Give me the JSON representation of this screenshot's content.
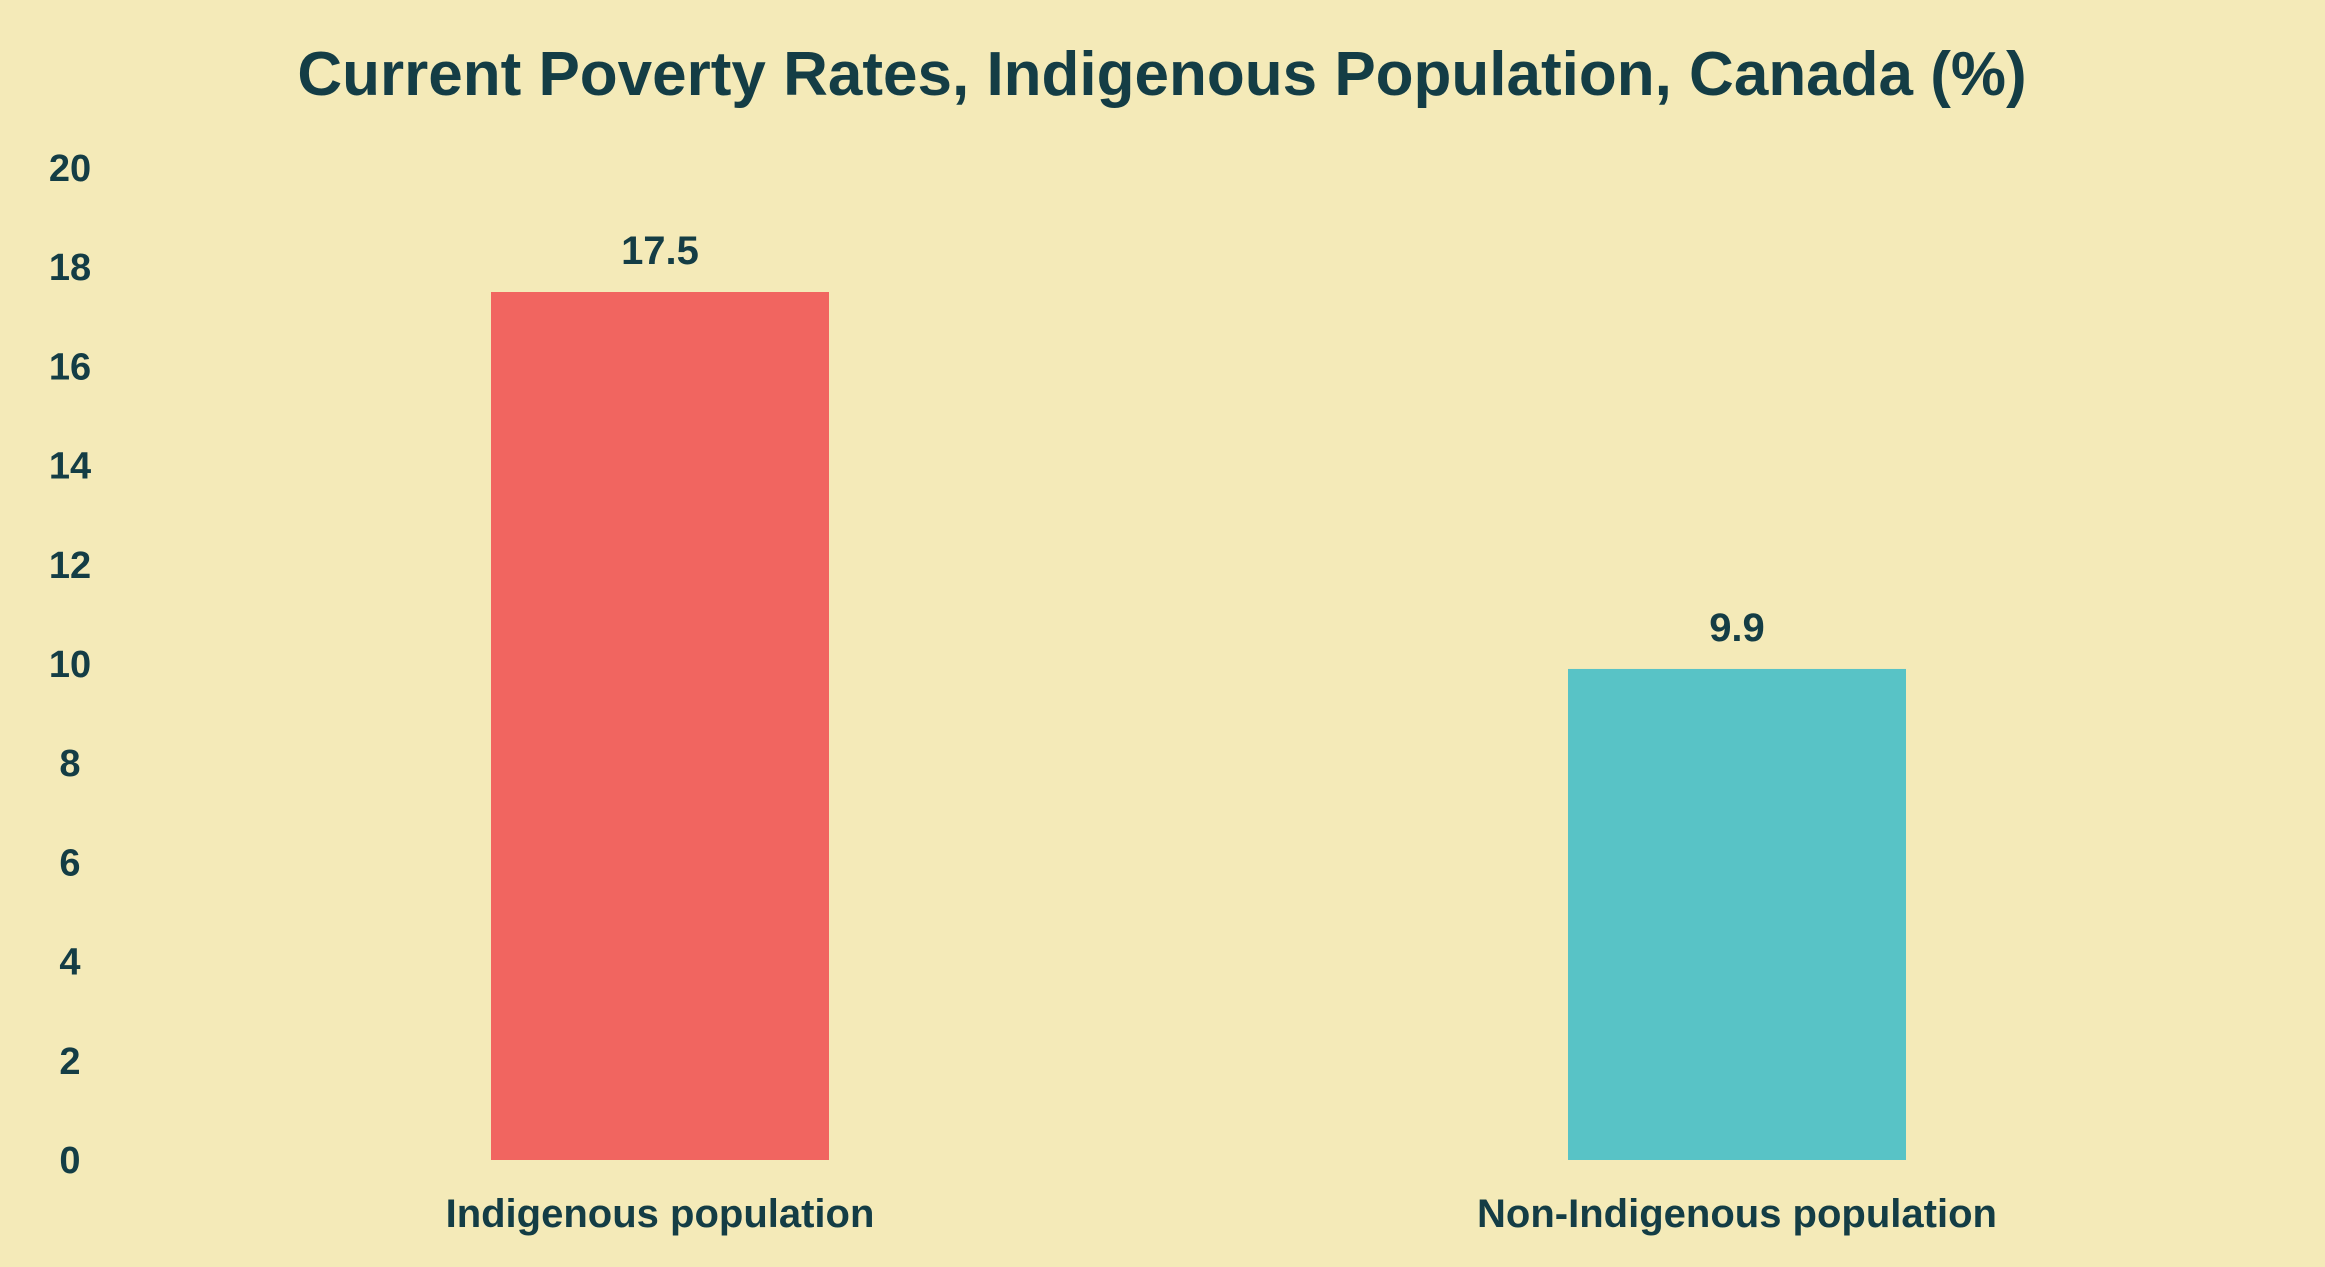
{
  "chart_data": {
    "type": "bar",
    "title": "Current Poverty Rates, Indigenous Population, Canada (%)",
    "xlabel": "",
    "ylabel": "",
    "categories": [
      "Indigenous population",
      "Non-Indigenous population"
    ],
    "values": [
      17.5,
      9.9
    ],
    "data_labels": [
      "17.5",
      "9.9"
    ],
    "bar_colors": [
      "#f16560",
      "#58c3c6"
    ],
    "ylim": [
      0,
      20
    ],
    "yticks": [
      0,
      2,
      4,
      6,
      8,
      10,
      12,
      14,
      16,
      18,
      20
    ],
    "ytick_labels": [
      "0",
      "2",
      "4",
      "6",
      "8",
      "10",
      "12",
      "14",
      "16",
      "18",
      "20"
    ],
    "grid": false,
    "legend": "none"
  },
  "colors": {
    "background": "#f4eab8",
    "text": "#143d45"
  }
}
